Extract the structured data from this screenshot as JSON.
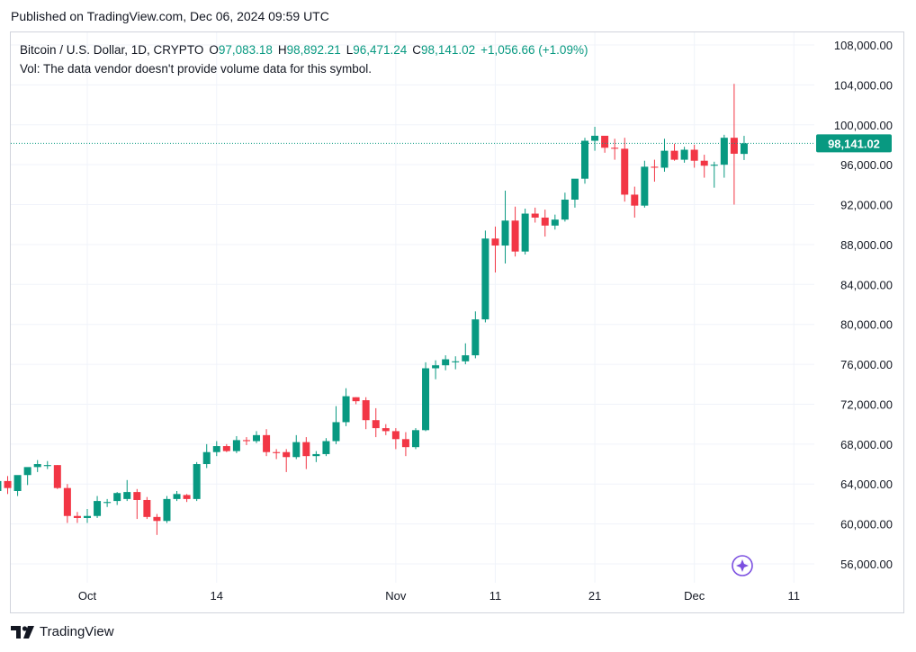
{
  "published": "Published on TradingView.com, Dec 06, 2024 09:59 UTC",
  "legend": {
    "symbol": "Bitcoin / U.S. Dollar, 1D, CRYPTO",
    "o_label": "O",
    "o_value": "97,083.18",
    "h_label": "H",
    "h_value": "98,892.21",
    "l_label": "L",
    "l_value": "96,471.24",
    "c_label": "C",
    "c_value": "98,141.02",
    "change": "+1,056.66 (+1.09%)",
    "vol": "Vol: The data vendor doesn't provide volume data for this symbol."
  },
  "footer": {
    "brand": "TradingView"
  },
  "colors": {
    "up": "#089981",
    "down": "#f23645",
    "grid": "#f0f3fa",
    "price_line": "#089981",
    "badge_icon": "#7b4fe0"
  },
  "chart_data": {
    "type": "candlestick",
    "y_ticks": [
      108000,
      104000,
      100000,
      96000,
      92000,
      88000,
      84000,
      80000,
      76000,
      72000,
      68000,
      64000,
      60000,
      56000
    ],
    "y_tick_labels": [
      "108,000.00",
      "104,000.00",
      "100,000.00",
      "96,000.00",
      "92,000.00",
      "88,000.00",
      "84,000.00",
      "80,000.00",
      "76,000.00",
      "72,000.00",
      "68,000.00",
      "64,000.00",
      "60,000.00",
      "56,000.00"
    ],
    "ylim": [
      53000,
      110500
    ],
    "x_ticks": [
      {
        "label": "Oct",
        "date": "2024-10-01"
      },
      {
        "label": "14",
        "date": "2024-10-14"
      },
      {
        "label": "Nov",
        "date": "2024-11-01"
      },
      {
        "label": "11",
        "date": "2024-11-11"
      },
      {
        "label": "21",
        "date": "2024-11-21"
      },
      {
        "label": "Dec",
        "date": "2024-12-01"
      },
      {
        "label": "11",
        "date": "2024-12-11"
      }
    ],
    "last_price": 98141.02,
    "last_price_label": "98,141.02",
    "candles": [
      {
        "date": "2024-09-21",
        "o": 63300,
        "h": 63600,
        "l": 62800,
        "c": 63300
      },
      {
        "date": "2024-09-22",
        "o": 63300,
        "h": 64800,
        "l": 62900,
        "c": 64300
      },
      {
        "date": "2024-09-23",
        "o": 64300,
        "h": 64800,
        "l": 63000,
        "c": 63600
      },
      {
        "date": "2024-09-24",
        "o": 63300,
        "h": 64800,
        "l": 62800,
        "c": 64900
      },
      {
        "date": "2024-09-25",
        "o": 64900,
        "h": 65500,
        "l": 63900,
        "c": 65700
      },
      {
        "date": "2024-09-26",
        "o": 65700,
        "h": 66400,
        "l": 65200,
        "c": 66000
      },
      {
        "date": "2024-09-27",
        "o": 65800,
        "h": 66300,
        "l": 65500,
        "c": 65900
      },
      {
        "date": "2024-09-28",
        "o": 65900,
        "h": 65900,
        "l": 63500,
        "c": 63600
      },
      {
        "date": "2024-09-29",
        "o": 63600,
        "h": 64000,
        "l": 60100,
        "c": 60800
      },
      {
        "date": "2024-09-30",
        "o": 60800,
        "h": 61200,
        "l": 60100,
        "c": 60600
      },
      {
        "date": "2024-10-01",
        "o": 60600,
        "h": 61500,
        "l": 60100,
        "c": 60800
      },
      {
        "date": "2024-10-02",
        "o": 60800,
        "h": 62800,
        "l": 60600,
        "c": 62300
      },
      {
        "date": "2024-10-03",
        "o": 62100,
        "h": 62500,
        "l": 61700,
        "c": 62200
      },
      {
        "date": "2024-10-04",
        "o": 62300,
        "h": 63200,
        "l": 61900,
        "c": 63100
      },
      {
        "date": "2024-10-05",
        "o": 62500,
        "h": 64400,
        "l": 62300,
        "c": 63200
      },
      {
        "date": "2024-10-06",
        "o": 63200,
        "h": 63500,
        "l": 60500,
        "c": 62400
      },
      {
        "date": "2024-10-07",
        "o": 62400,
        "h": 62700,
        "l": 60500,
        "c": 60700
      },
      {
        "date": "2024-10-08",
        "o": 60700,
        "h": 61000,
        "l": 58900,
        "c": 60300
      },
      {
        "date": "2024-10-09",
        "o": 60300,
        "h": 62800,
        "l": 60100,
        "c": 62500
      },
      {
        "date": "2024-10-10",
        "o": 62500,
        "h": 63300,
        "l": 62300,
        "c": 63000
      },
      {
        "date": "2024-10-11",
        "o": 62900,
        "h": 63000,
        "l": 62200,
        "c": 62500
      },
      {
        "date": "2024-10-12",
        "o": 62500,
        "h": 66200,
        "l": 62300,
        "c": 66000
      },
      {
        "date": "2024-10-13",
        "o": 66000,
        "h": 68000,
        "l": 65600,
        "c": 67200
      },
      {
        "date": "2024-10-14",
        "o": 67200,
        "h": 68300,
        "l": 66800,
        "c": 67800
      },
      {
        "date": "2024-10-15",
        "o": 67800,
        "h": 68000,
        "l": 67200,
        "c": 67300
      },
      {
        "date": "2024-10-16",
        "o": 67300,
        "h": 68800,
        "l": 67100,
        "c": 68400
      },
      {
        "date": "2024-10-17",
        "o": 68400,
        "h": 68700,
        "l": 67900,
        "c": 68300
      },
      {
        "date": "2024-10-18",
        "o": 68300,
        "h": 69300,
        "l": 68100,
        "c": 68900
      },
      {
        "date": "2024-10-19",
        "o": 68900,
        "h": 69500,
        "l": 66800,
        "c": 67200
      },
      {
        "date": "2024-10-20",
        "o": 67200,
        "h": 67500,
        "l": 66500,
        "c": 67100
      },
      {
        "date": "2024-10-21",
        "o": 67200,
        "h": 67500,
        "l": 65200,
        "c": 66700
      },
      {
        "date": "2024-10-22",
        "o": 66700,
        "h": 68900,
        "l": 66500,
        "c": 68200
      },
      {
        "date": "2024-10-23",
        "o": 68200,
        "h": 68700,
        "l": 65500,
        "c": 66800
      },
      {
        "date": "2024-10-24",
        "o": 66800,
        "h": 67300,
        "l": 66200,
        "c": 67000
      },
      {
        "date": "2024-10-25",
        "o": 67000,
        "h": 68600,
        "l": 66800,
        "c": 68300
      },
      {
        "date": "2024-10-26",
        "o": 68300,
        "h": 71800,
        "l": 68000,
        "c": 70200
      },
      {
        "date": "2024-10-27",
        "o": 70200,
        "h": 73600,
        "l": 69800,
        "c": 72800
      },
      {
        "date": "2024-10-28",
        "o": 72700,
        "h": 72700,
        "l": 72000,
        "c": 72300
      },
      {
        "date": "2024-10-29",
        "o": 72400,
        "h": 72700,
        "l": 69500,
        "c": 70400
      },
      {
        "date": "2024-10-30",
        "o": 70400,
        "h": 71600,
        "l": 68700,
        "c": 69600
      },
      {
        "date": "2024-10-31",
        "o": 69600,
        "h": 70000,
        "l": 68900,
        "c": 69300
      },
      {
        "date": "2024-11-01",
        "o": 69300,
        "h": 69600,
        "l": 67500,
        "c": 68500
      },
      {
        "date": "2024-11-02",
        "o": 68500,
        "h": 69200,
        "l": 66800,
        "c": 67700
      },
      {
        "date": "2024-11-03",
        "o": 67700,
        "h": 69600,
        "l": 67500,
        "c": 69400
      },
      {
        "date": "2024-11-04",
        "o": 69400,
        "h": 76200,
        "l": 69300,
        "c": 75600
      },
      {
        "date": "2024-11-05",
        "o": 75600,
        "h": 76400,
        "l": 74500,
        "c": 75900
      },
      {
        "date": "2024-11-06",
        "o": 75900,
        "h": 76900,
        "l": 75400,
        "c": 76500
      },
      {
        "date": "2024-11-07",
        "o": 76200,
        "h": 76800,
        "l": 75500,
        "c": 76300
      },
      {
        "date": "2024-11-08",
        "o": 76300,
        "h": 78100,
        "l": 76000,
        "c": 76900
      },
      {
        "date": "2024-11-09",
        "o": 76900,
        "h": 81300,
        "l": 76600,
        "c": 80500
      },
      {
        "date": "2024-11-10",
        "o": 80500,
        "h": 89400,
        "l": 80200,
        "c": 88600
      },
      {
        "date": "2024-11-11",
        "o": 88600,
        "h": 89800,
        "l": 85200,
        "c": 87900
      },
      {
        "date": "2024-11-12",
        "o": 87900,
        "h": 93400,
        "l": 86100,
        "c": 90400
      },
      {
        "date": "2024-11-13",
        "o": 90400,
        "h": 91800,
        "l": 86800,
        "c": 87300
      },
      {
        "date": "2024-11-14",
        "o": 87300,
        "h": 91600,
        "l": 87000,
        "c": 91100
      },
      {
        "date": "2024-11-15",
        "o": 91100,
        "h": 91700,
        "l": 90200,
        "c": 90700
      },
      {
        "date": "2024-11-16",
        "o": 90700,
        "h": 91500,
        "l": 88800,
        "c": 89900
      },
      {
        "date": "2024-11-17",
        "o": 89900,
        "h": 91000,
        "l": 89500,
        "c": 90500
      },
      {
        "date": "2024-11-18",
        "o": 90500,
        "h": 93200,
        "l": 90300,
        "c": 92500
      },
      {
        "date": "2024-11-19",
        "o": 92500,
        "h": 94300,
        "l": 91700,
        "c": 94600
      },
      {
        "date": "2024-11-20",
        "o": 94600,
        "h": 98700,
        "l": 94100,
        "c": 98400
      },
      {
        "date": "2024-11-21",
        "o": 98400,
        "h": 99800,
        "l": 97400,
        "c": 98900
      },
      {
        "date": "2024-11-22",
        "o": 98900,
        "h": 98800,
        "l": 97200,
        "c": 97700
      },
      {
        "date": "2024-11-23",
        "o": 97700,
        "h": 98600,
        "l": 96500,
        "c": 97600
      },
      {
        "date": "2024-11-24",
        "o": 97600,
        "h": 98700,
        "l": 92300,
        "c": 93000
      },
      {
        "date": "2024-11-25",
        "o": 93000,
        "h": 93800,
        "l": 90700,
        "c": 91900
      },
      {
        "date": "2024-11-26",
        "o": 91900,
        "h": 96400,
        "l": 91700,
        "c": 95800
      },
      {
        "date": "2024-11-27",
        "o": 95800,
        "h": 96500,
        "l": 94300,
        "c": 95700
      },
      {
        "date": "2024-11-28",
        "o": 95700,
        "h": 98600,
        "l": 95300,
        "c": 97400
      },
      {
        "date": "2024-11-29",
        "o": 97400,
        "h": 98100,
        "l": 96400,
        "c": 96500
      },
      {
        "date": "2024-11-30",
        "o": 96500,
        "h": 97800,
        "l": 96200,
        "c": 97500
      },
      {
        "date": "2024-12-01",
        "o": 97500,
        "h": 98000,
        "l": 95700,
        "c": 96400
      },
      {
        "date": "2024-12-02",
        "o": 96400,
        "h": 97000,
        "l": 94700,
        "c": 95900
      },
      {
        "date": "2024-12-03",
        "o": 95900,
        "h": 96300,
        "l": 93700,
        "c": 96000
      },
      {
        "date": "2024-12-04",
        "o": 96000,
        "h": 99000,
        "l": 94700,
        "c": 98700
      },
      {
        "date": "2024-12-05",
        "o": 98700,
        "h": 104100,
        "l": 92000,
        "c": 97100
      },
      {
        "date": "2024-12-06",
        "o": 97083.18,
        "h": 98892.21,
        "l": 96471.24,
        "c": 98141.02
      }
    ]
  }
}
